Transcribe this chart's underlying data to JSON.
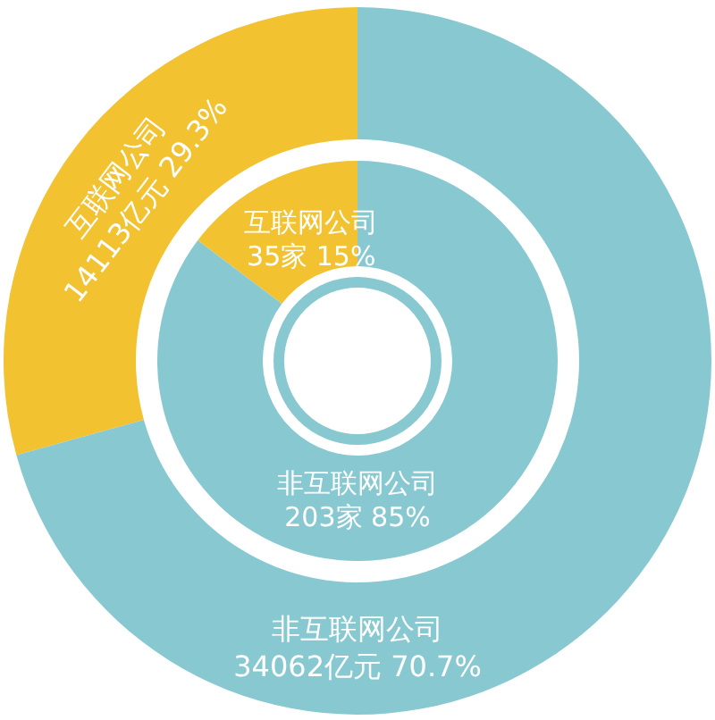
{
  "chart_data": [
    {
      "type": "donut",
      "categories": [
        "互联网公司",
        "非互联网公司"
      ],
      "values": [
        14113,
        34062
      ],
      "colors": [
        "#f2c230",
        "#88c9d1"
      ],
      "value_labels": [
        "14113亿元 29.3%",
        "34062亿元 70.7%"
      ]
    },
    {
      "type": "donut",
      "categories": [
        "互联网公司",
        "非互联网公司"
      ],
      "values": [
        35,
        203
      ],
      "colors": [
        "#f2c230",
        "#88c9d1"
      ],
      "value_labels": [
        "35家 15%",
        "203家 85%"
      ]
    }
  ]
}
